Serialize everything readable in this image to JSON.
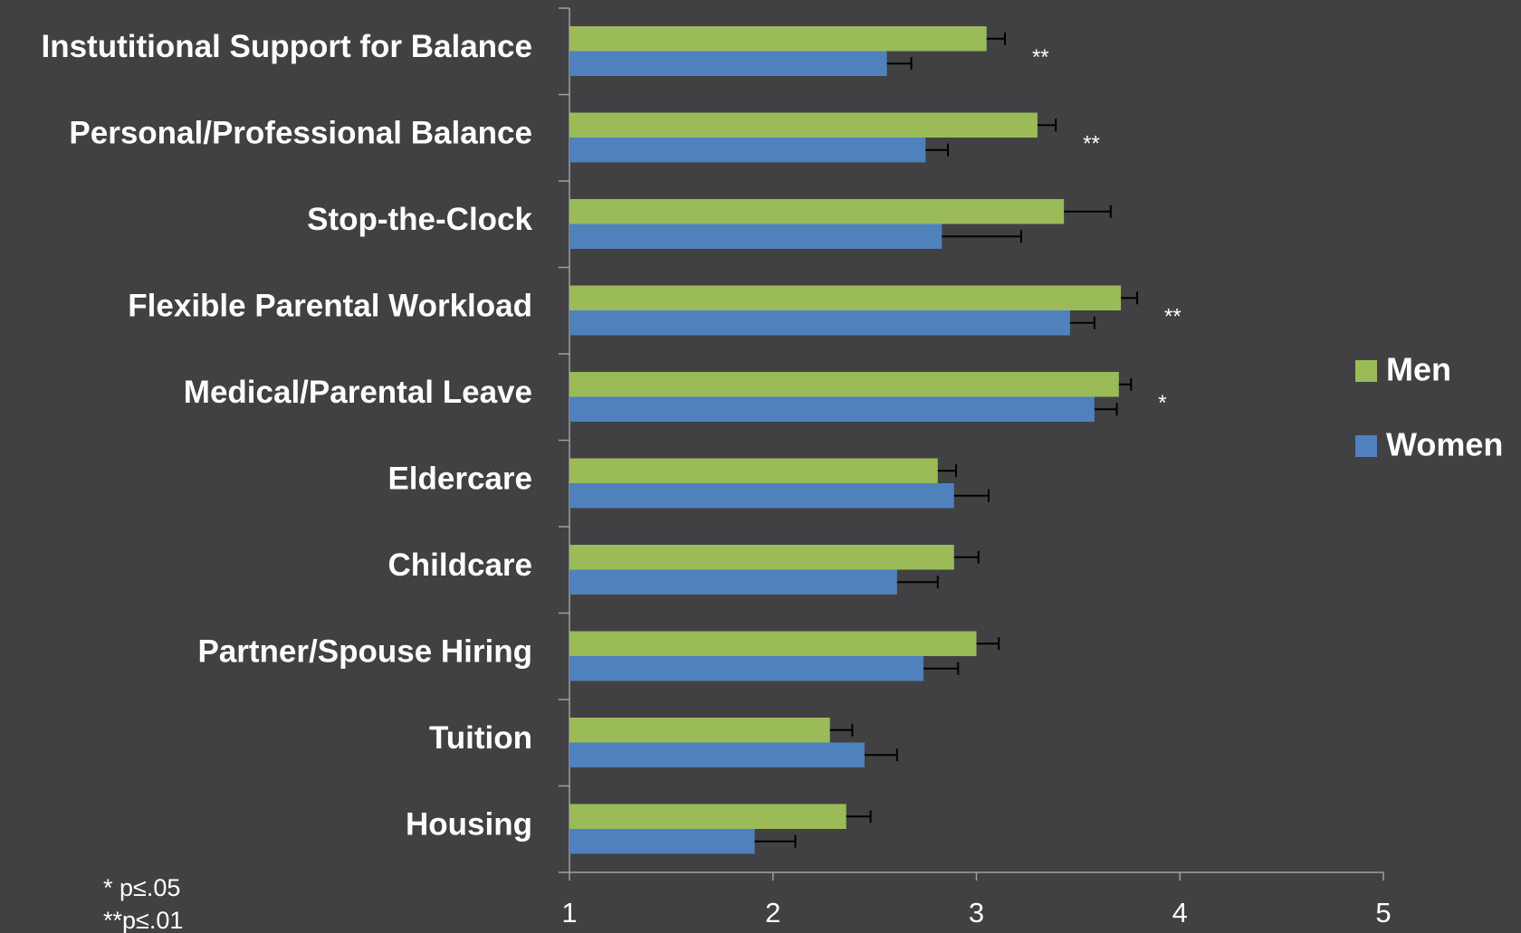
{
  "chart_data": {
    "type": "hbar",
    "categories": [
      "Instutitional Support for Balance",
      "Personal/Professional Balance",
      "Stop-the-Clock",
      "Flexible Parental Workload",
      "Medical/Parental Leave",
      "Eldercare",
      "Childcare",
      "Partner/Spouse Hiring",
      "Tuition",
      "Housing"
    ],
    "series": [
      {
        "name": "Men",
        "color": "#9bbb59",
        "values": [
          3.05,
          3.3,
          3.43,
          3.71,
          3.7,
          2.81,
          2.89,
          3.0,
          2.28,
          2.36
        ],
        "errors": [
          0.09,
          0.09,
          0.23,
          0.08,
          0.06,
          0.09,
          0.12,
          0.11,
          0.11,
          0.12
        ]
      },
      {
        "name": "Women",
        "color": "#4f81bd",
        "values": [
          2.56,
          2.75,
          2.83,
          3.46,
          3.58,
          2.89,
          2.61,
          2.74,
          2.45,
          1.91
        ],
        "errors": [
          0.12,
          0.11,
          0.39,
          0.12,
          0.11,
          0.17,
          0.2,
          0.17,
          0.16,
          0.2
        ]
      }
    ],
    "xlim": [
      1,
      5
    ],
    "xticks": [
      1,
      2,
      3,
      4,
      5
    ],
    "annotations": [
      {
        "category": 0,
        "text": "**"
      },
      {
        "category": 1,
        "text": "**"
      },
      {
        "category": 3,
        "text": "**"
      },
      {
        "category": 4,
        "text": "*"
      }
    ],
    "notes": [
      "*  p≤.05",
      "**p≤.01"
    ],
    "legend": "right"
  }
}
